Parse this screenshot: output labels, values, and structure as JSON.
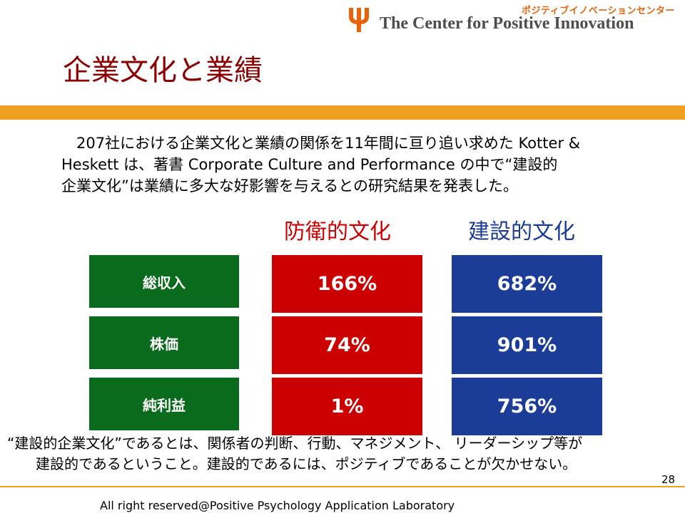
{
  "header": {
    "org_kana": "ポジティブイノベーションセンター",
    "org_name": "The Center for Positive Innovation",
    "logo_icon": "psi-icon",
    "accent": "#e8620a"
  },
  "slide": {
    "title": "企業文化と業績",
    "intro_lines": [
      "　207社における企業文化と業績の関係を11年間に亘り追い求めた Kotter &",
      "Heskett は、著書 Corporate Culture and Performance の中で“建設的",
      "企業文化”は業績に多大な好影響を与えるとの研究結果を発表した。"
    ]
  },
  "table": {
    "col_defensive": "防衛的文化",
    "col_constructive": "建設的文化",
    "rows": [
      {
        "label": "総収入",
        "defensive": "166%",
        "constructive": "682%"
      },
      {
        "label": "株価",
        "defensive": "74%",
        "constructive": "901%"
      },
      {
        "label": "純利益",
        "defensive": "1%",
        "constructive": "756%"
      }
    ],
    "colors": {
      "label_bg": "#0b6b1c",
      "defensive_bg": "#cc0000",
      "constructive_bg": "#1b3d98"
    }
  },
  "footer": {
    "note_lines": [
      "“建設的企業文化”であるとは、関係者の判断、行動、マネジメント、 リーダーシップ等が",
      "　　建設的であるということ。建設的であるには、ポジティブであることが欠かせない。"
    ],
    "page_number": "28",
    "copyright": "All right reserved@Positive Psychology Application Laboratory"
  }
}
